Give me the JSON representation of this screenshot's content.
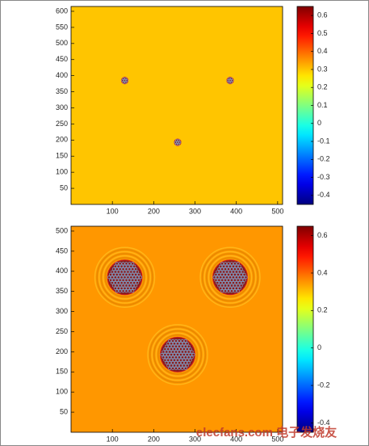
{
  "chart_data": [
    {
      "type": "heatmap",
      "colormap": "jet",
      "xlim": [
        0,
        512
      ],
      "ylim": [
        0,
        615
      ],
      "xticks": [
        100,
        200,
        300,
        400,
        500
      ],
      "yticks": [
        50,
        100,
        150,
        200,
        250,
        300,
        350,
        400,
        450,
        500,
        550,
        600
      ],
      "clim": [
        -0.45,
        0.65
      ],
      "cticks": [
        -0.4,
        -0.3,
        -0.2,
        -0.1,
        0,
        0.1,
        0.2,
        0.3,
        0.4,
        0.5,
        0.6
      ],
      "background": 0.3,
      "spots": [
        {
          "x": 130,
          "y": 385,
          "radius": 8
        },
        {
          "x": 385,
          "y": 385,
          "radius": 8
        },
        {
          "x": 258,
          "y": 193,
          "radius": 8
        }
      ]
    },
    {
      "type": "heatmap",
      "colormap": "jet",
      "xlim": [
        0,
        512
      ],
      "ylim": [
        0,
        512
      ],
      "xticks": [
        100,
        200,
        300,
        400,
        500
      ],
      "yticks": [
        50,
        100,
        150,
        200,
        250,
        300,
        350,
        400,
        450,
        500
      ],
      "clim": [
        -0.45,
        0.65
      ],
      "cticks": [
        -0.4,
        -0.2,
        0,
        0.2,
        0.4,
        0.6
      ],
      "background": 0.35,
      "spots": [
        {
          "x": 130,
          "y": 385,
          "radius": 42
        },
        {
          "x": 385,
          "y": 385,
          "radius": 42
        },
        {
          "x": 258,
          "y": 193,
          "radius": 42
        }
      ]
    }
  ],
  "watermark": "elecfans.com 电子发烧友"
}
